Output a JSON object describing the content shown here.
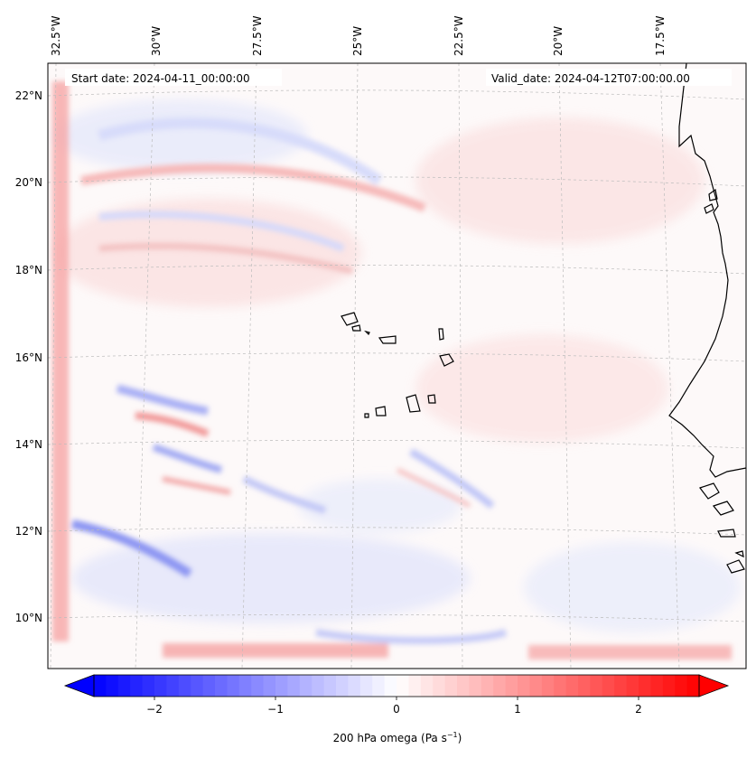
{
  "map": {
    "header": {
      "start_date": "Start date: 2024-04-11_00:00:00",
      "valid_date": "Valid_date: 2024-04-12T07:00:00.00"
    },
    "longitude_labels": [
      "32.5°W",
      "30°W",
      "27.5°W",
      "25°W",
      "22.5°W",
      "20°W",
      "17.5°W"
    ],
    "latitude_labels": [
      "22°N",
      "20°N",
      "18°N",
      "16°N",
      "14°N",
      "12°N",
      "10°N"
    ],
    "colorbar": {
      "ticks": [
        "−2",
        "−1",
        "0",
        "1",
        "2"
      ],
      "tick_values": [
        -2,
        -1,
        0,
        1,
        2
      ],
      "range": [
        -2.5,
        2.5
      ],
      "label_main": "200 hPa omega (Pa s",
      "label_sup": "−1",
      "label_end": ")",
      "colors": {
        "negative": "#0000ff",
        "neutral": "#ffffff",
        "positive": "#ff0000"
      }
    },
    "style": {
      "coastline_color": "#000000",
      "grid_color": "#bbbbbb"
    }
  }
}
